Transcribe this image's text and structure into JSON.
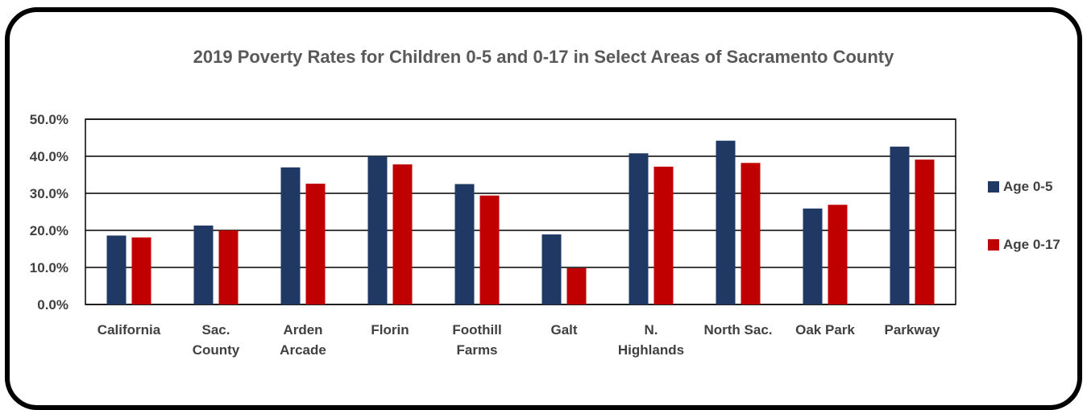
{
  "chart_data": {
    "type": "bar",
    "title": "2019 Poverty Rates for Children 0-5 and 0-17 in Select Areas of Sacramento County",
    "categories": [
      [
        "California"
      ],
      [
        "Sac.",
        "County"
      ],
      [
        "Arden",
        "Arcade"
      ],
      [
        "Florin"
      ],
      [
        "Foothill",
        "Farms"
      ],
      [
        "Galt"
      ],
      [
        "N.",
        "Highlands"
      ],
      [
        "North Sac."
      ],
      [
        "Oak Park"
      ],
      [
        "Parkway"
      ]
    ],
    "series": [
      {
        "name": "Age 0-5",
        "color": "#1f3864",
        "values": [
          18.6,
          21.3,
          37.0,
          40.0,
          32.5,
          18.9,
          40.8,
          44.2,
          25.9,
          42.6
        ]
      },
      {
        "name": "Age 0-17",
        "color": "#c00000",
        "values": [
          18.1,
          20.0,
          32.6,
          37.8,
          29.4,
          9.8,
          37.2,
          38.2,
          26.9,
          39.1
        ]
      }
    ],
    "yticks": [
      "0.0%",
      "10.0%",
      "20.0%",
      "30.0%",
      "40.0%",
      "50.0%"
    ],
    "ylim": [
      0,
      50
    ],
    "grid": true,
    "legend_position": "right"
  }
}
